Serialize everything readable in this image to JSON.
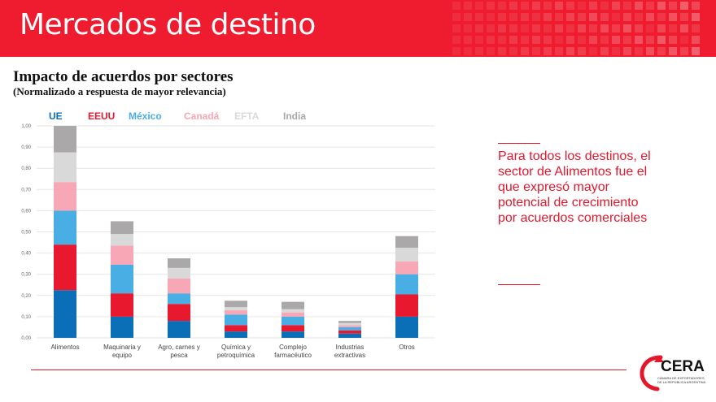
{
  "header": {
    "title": "Mercados de destino"
  },
  "side_note": "Para todos los destinos, el sector de Alimentos fue el que expresó mayor potencial de crecimiento por acuerdos comerciales",
  "logo": {
    "name": "CERA",
    "tagline": "CÁMARA DE EXPORTADORES DE LA REPÚBLICA ARGENTINA"
  },
  "colors": {
    "brand": "#ee1c2e",
    "UE": "#0b6fb8",
    "EEUU": "#e8182f",
    "México": "#48aee3",
    "Canadá": "#f7a7b5",
    "EFTA": "#d9d9d9",
    "India": "#aaa8a9"
  },
  "chart_data": {
    "type": "bar",
    "stacked": true,
    "title": "Impacto de acuerdos por sectores",
    "subtitle": "(Normalizado a respuesta de mayor relevancia)",
    "categories": [
      "Alimentos",
      "Maquinaria y equipo",
      "Agro, carnes y pesca",
      "Química y petroquímica",
      "Complejo farmacéutico",
      "Industrias extractivas",
      "Otros"
    ],
    "category_lines": [
      [
        "Alimentos"
      ],
      [
        "Maquinaria y",
        "equipo"
      ],
      [
        "Agro, carnes y",
        "pesca"
      ],
      [
        "Química y",
        "petroquímica"
      ],
      [
        "Complejo",
        "farmacéutico"
      ],
      [
        "Industrias",
        "extractivas"
      ],
      [
        "Otros"
      ]
    ],
    "series": [
      {
        "name": "UE",
        "values": [
          0.225,
          0.1,
          0.08,
          0.03,
          0.03,
          0.02,
          0.1
        ]
      },
      {
        "name": "EEUU",
        "values": [
          0.215,
          0.11,
          0.08,
          0.03,
          0.03,
          0.015,
          0.105
        ]
      },
      {
        "name": "México",
        "values": [
          0.16,
          0.135,
          0.05,
          0.05,
          0.04,
          0.015,
          0.095
        ]
      },
      {
        "name": "Canadá",
        "values": [
          0.135,
          0.09,
          0.07,
          0.02,
          0.02,
          0.01,
          0.06
        ]
      },
      {
        "name": "EFTA",
        "values": [
          0.14,
          0.055,
          0.05,
          0.015,
          0.015,
          0.01,
          0.065
        ]
      },
      {
        "name": "India",
        "values": [
          0.125,
          0.06,
          0.045,
          0.03,
          0.035,
          0.01,
          0.055
        ]
      }
    ],
    "yticks": [
      "0,00",
      "0,10",
      "0,20",
      "0,30",
      "0,40",
      "0,50",
      "0,60",
      "0,70",
      "0,80",
      "0,90",
      "1,00"
    ],
    "ylim": [
      0,
      1
    ],
    "grid": true,
    "legend_position": "top"
  }
}
